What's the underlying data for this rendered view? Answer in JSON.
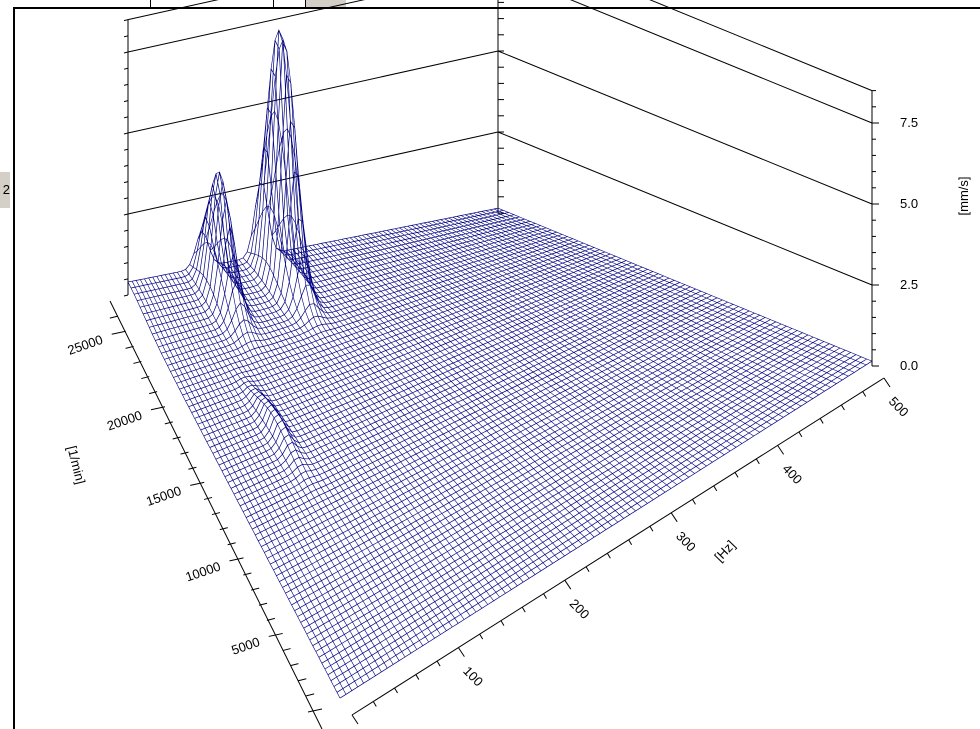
{
  "background_tab": {
    "label": "2"
  },
  "chart_data": {
    "type": "waterfall-3d",
    "title": "",
    "xlabel": "[Hz]",
    "ylabel": "[1/min]",
    "zlabel": "[mm/s]",
    "x_ticks": [
      "100",
      "200",
      "300",
      "400",
      "500"
    ],
    "y_ticks": [
      "5000",
      "10000",
      "15000",
      "20000",
      "25000"
    ],
    "z_ticks": [
      "0.0",
      "2.5",
      "5.0",
      "7.5"
    ],
    "xlim": [
      0,
      500
    ],
    "ylim": [
      0,
      27000
    ],
    "zlim": [
      0,
      8.5
    ],
    "grid": true,
    "line_color": "#000080",
    "peaks": [
      {
        "freq_hz": 100,
        "rpm": 25000,
        "amplitude": 3.8
      },
      {
        "freq_hz": 180,
        "rpm": 25000,
        "amplitude": 8.0
      }
    ]
  }
}
